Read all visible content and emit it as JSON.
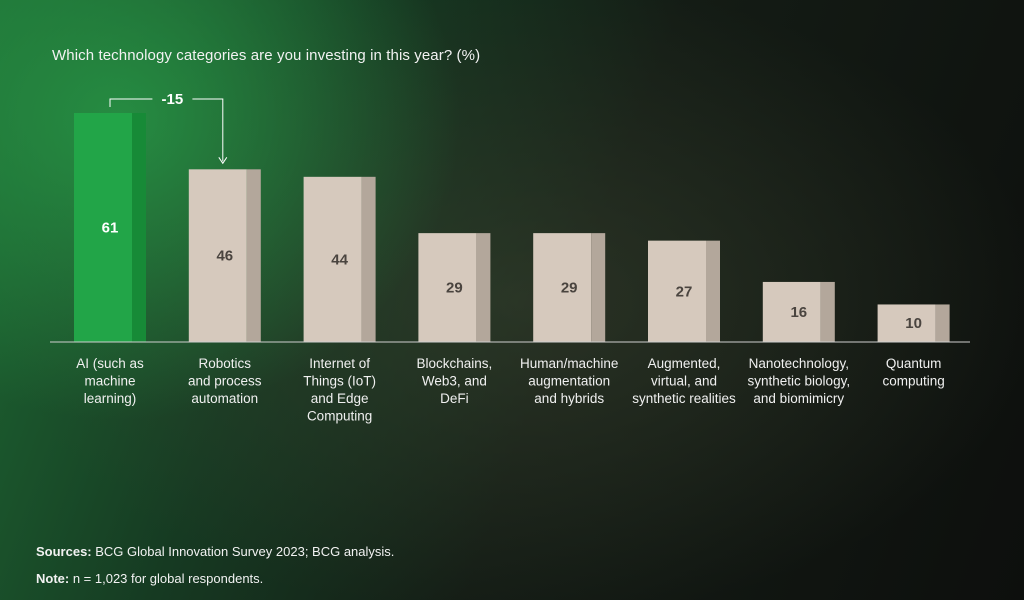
{
  "title": "Which technology categories are you investing in this year? (%)",
  "callout": {
    "label": "-15",
    "from_index": 0,
    "to_index": 1
  },
  "colors": {
    "highlight": "#22a548",
    "highlight_side": "#178a37",
    "bar": "#d6c9bd",
    "bar_side": "#b3a79b",
    "highlight_text": "#ffffff",
    "bar_text": "#4a443f"
  },
  "chart_data": {
    "type": "bar",
    "title": "Which technology categories are you investing in this year? (%)",
    "xlabel": "",
    "ylabel": "",
    "ylim": [
      0,
      61
    ],
    "highlight_index": 0,
    "categories": [
      [
        "AI (such as",
        "machine",
        "learning)"
      ],
      [
        "Robotics",
        "and process",
        "automation"
      ],
      [
        "Internet of",
        "Things (IoT)",
        "and Edge",
        "Computing"
      ],
      [
        "Blockchains,",
        "Web3, and",
        "DeFi"
      ],
      [
        "Human/machine",
        "augmentation",
        "and hybrids"
      ],
      [
        "Augmented,",
        "virtual, and",
        "synthetic realities"
      ],
      [
        "Nanotechnology,",
        "synthetic biology,",
        "and biomimicry"
      ],
      [
        "Quantum",
        "computing"
      ]
    ],
    "values": [
      61,
      46,
      44,
      29,
      29,
      27,
      16,
      10
    ]
  },
  "footer": {
    "sources_label": "Sources:",
    "sources_text": " BCG Global Innovation Survey 2023; BCG analysis.",
    "note_label": "Note:",
    "note_text": " n = 1,023 for global respondents."
  }
}
